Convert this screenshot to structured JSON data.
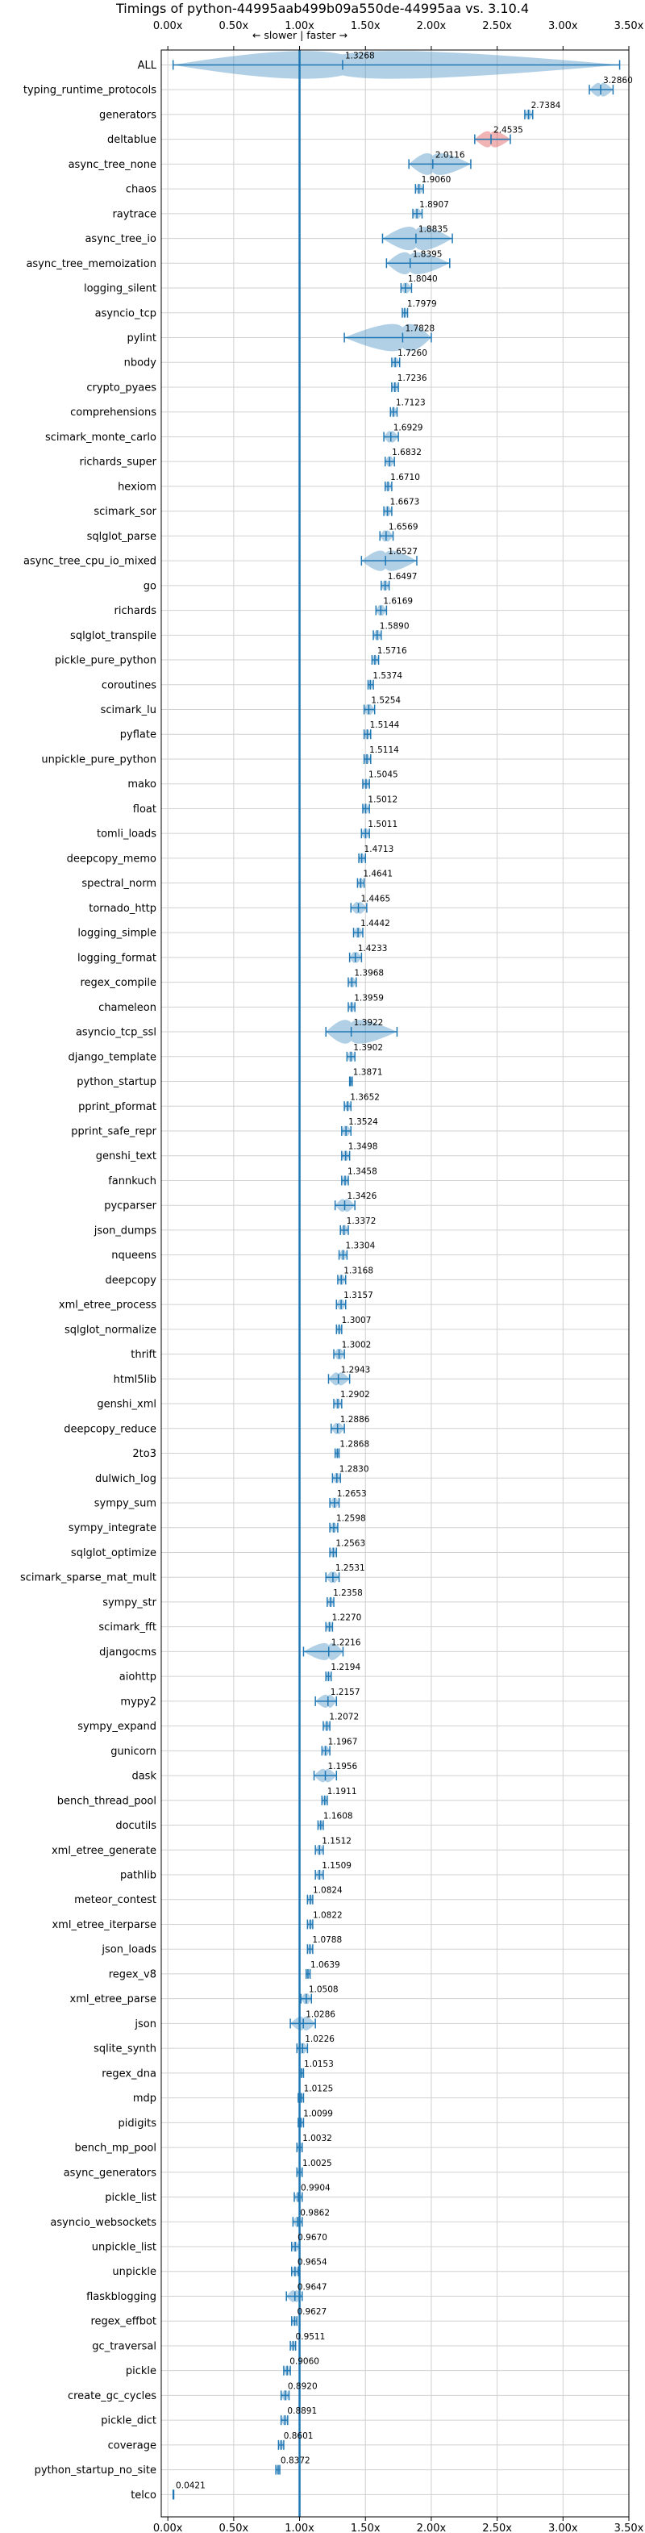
{
  "chart_data": {
    "type": "violin",
    "title": "Timings of python-44995aab499b09a550de-44995aa vs. 3.10.4",
    "direction_hint": "← slower | faster →",
    "xlim": [
      -0.05,
      3.5
    ],
    "xticks": [
      0,
      0.5,
      1.0,
      1.5,
      2.0,
      2.5,
      3.0,
      3.5
    ],
    "xtick_labels": [
      "0.00x",
      "0.50x",
      "1.00x",
      "1.50x",
      "2.00x",
      "2.50x",
      "3.00x",
      "3.50x"
    ],
    "reference_line": 1.0,
    "grid": true,
    "series_colors": {
      "faster": "#1f77b4",
      "slower": "#d62728"
    },
    "categories": [
      "ALL",
      "typing_runtime_protocols",
      "generators",
      "deltablue",
      "async_tree_none",
      "chaos",
      "raytrace",
      "async_tree_io",
      "async_tree_memoization",
      "logging_silent",
      "asyncio_tcp",
      "pylint",
      "nbody",
      "crypto_pyaes",
      "comprehensions",
      "scimark_monte_carlo",
      "richards_super",
      "hexiom",
      "scimark_sor",
      "sqlglot_parse",
      "async_tree_cpu_io_mixed",
      "go",
      "richards",
      "sqlglot_transpile",
      "pickle_pure_python",
      "coroutines",
      "scimark_lu",
      "pyflate",
      "unpickle_pure_python",
      "mako",
      "float",
      "tomli_loads",
      "deepcopy_memo",
      "spectral_norm",
      "tornado_http",
      "logging_simple",
      "logging_format",
      "regex_compile",
      "chameleon",
      "asyncio_tcp_ssl",
      "django_template",
      "python_startup",
      "pprint_pformat",
      "pprint_safe_repr",
      "genshi_text",
      "fannkuch",
      "pycparser",
      "json_dumps",
      "nqueens",
      "deepcopy",
      "xml_etree_process",
      "sqlglot_normalize",
      "thrift",
      "html5lib",
      "genshi_xml",
      "deepcopy_reduce",
      "2to3",
      "dulwich_log",
      "sympy_sum",
      "sympy_integrate",
      "sqlglot_optimize",
      "scimark_sparse_mat_mult",
      "sympy_str",
      "scimark_fft",
      "djangocms",
      "aiohttp",
      "mypy2",
      "sympy_expand",
      "gunicorn",
      "dask",
      "bench_thread_pool",
      "docutils",
      "xml_etree_generate",
      "pathlib",
      "meteor_contest",
      "xml_etree_iterparse",
      "json_loads",
      "regex_v8",
      "xml_etree_parse",
      "json",
      "sqlite_synth",
      "regex_dna",
      "mdp",
      "pidigits",
      "bench_mp_pool",
      "async_generators",
      "pickle_list",
      "asyncio_websockets",
      "unpickle_list",
      "unpickle",
      "flaskblogging",
      "regex_effbot",
      "gc_traversal",
      "pickle",
      "create_gc_cycles",
      "pickle_dict",
      "coverage",
      "python_startup_no_site",
      "telco"
    ],
    "values": [
      1.3268,
      3.286,
      2.7384,
      2.4535,
      2.0116,
      1.906,
      1.8907,
      1.8835,
      1.8395,
      1.804,
      1.7979,
      1.7828,
      1.726,
      1.7236,
      1.7123,
      1.6929,
      1.6832,
      1.671,
      1.6673,
      1.6569,
      1.6527,
      1.6497,
      1.6169,
      1.589,
      1.5716,
      1.5374,
      1.5254,
      1.5144,
      1.5114,
      1.5045,
      1.5012,
      1.5011,
      1.4713,
      1.4641,
      1.4465,
      1.4442,
      1.4233,
      1.3968,
      1.3959,
      1.3922,
      1.3902,
      1.3871,
      1.3652,
      1.3524,
      1.3498,
      1.3458,
      1.3426,
      1.3372,
      1.3304,
      1.3168,
      1.3157,
      1.3007,
      1.3002,
      1.2943,
      1.2902,
      1.2886,
      1.2868,
      1.283,
      1.2653,
      1.2598,
      1.2563,
      1.2531,
      1.2358,
      1.227,
      1.2216,
      1.2194,
      1.2157,
      1.2072,
      1.1967,
      1.1956,
      1.1911,
      1.1608,
      1.1512,
      1.1509,
      1.0824,
      1.0822,
      1.0788,
      1.0639,
      1.0508,
      1.0286,
      1.0226,
      1.0153,
      1.0125,
      1.0099,
      1.0032,
      1.0025,
      0.9904,
      0.9862,
      0.967,
      0.9654,
      0.9647,
      0.9627,
      0.9511,
      0.906,
      0.892,
      0.8891,
      0.8601,
      0.8372,
      0.0421
    ],
    "value_labels": [
      "1.3268",
      "3.2860",
      "2.7384",
      "2.4535",
      "2.0116",
      "1.9060",
      "1.8907",
      "1.8835",
      "1.8395",
      "1.8040",
      "1.7979",
      "1.7828",
      "1.7260",
      "1.7236",
      "1.7123",
      "1.6929",
      "1.6832",
      "1.6710",
      "1.6673",
      "1.6569",
      "1.6527",
      "1.6497",
      "1.6169",
      "1.5890",
      "1.5716",
      "1.5374",
      "1.5254",
      "1.5144",
      "1.5114",
      "1.5045",
      "1.5012",
      "1.5011",
      "1.4713",
      "1.4641",
      "1.4465",
      "1.4442",
      "1.4233",
      "1.3968",
      "1.3959",
      "1.3922",
      "1.3902",
      "1.3871",
      "1.3652",
      "1.3524",
      "1.3498",
      "1.3458",
      "1.3426",
      "1.3372",
      "1.3304",
      "1.3168",
      "1.3157",
      "1.3007",
      "1.3002",
      "1.2943",
      "1.2902",
      "1.2886",
      "1.2868",
      "1.2830",
      "1.2653",
      "1.2598",
      "1.2563",
      "1.2531",
      "1.2358",
      "1.2270",
      "1.2216",
      "1.2194",
      "1.2157",
      "1.2072",
      "1.1967",
      "1.1956",
      "1.1911",
      "1.1608",
      "1.1512",
      "1.1509",
      "1.0824",
      "1.0822",
      "1.0788",
      "1.0639",
      "1.0508",
      "1.0286",
      "1.0226",
      "1.0153",
      "1.0125",
      "1.0099",
      "1.0032",
      "1.0025",
      "0.9904",
      "0.9862",
      "0.9670",
      "0.9654",
      "0.9647",
      "0.9627",
      "0.9511",
      "0.9060",
      "0.8920",
      "0.8891",
      "0.8601",
      "0.8372",
      "0.0421"
    ],
    "ranges": [
      [
        0.04,
        3.43
      ],
      [
        3.2,
        3.38
      ],
      [
        2.71,
        2.77
      ],
      [
        2.33,
        2.6
      ],
      [
        1.83,
        2.3
      ],
      [
        1.88,
        1.94
      ],
      [
        1.86,
        1.93
      ],
      [
        1.63,
        2.16
      ],
      [
        1.66,
        2.14
      ],
      [
        1.77,
        1.85
      ],
      [
        1.78,
        1.82
      ],
      [
        1.34,
        2.0
      ],
      [
        1.7,
        1.76
      ],
      [
        1.7,
        1.75
      ],
      [
        1.69,
        1.74
      ],
      [
        1.64,
        1.75
      ],
      [
        1.65,
        1.72
      ],
      [
        1.65,
        1.7
      ],
      [
        1.64,
        1.7
      ],
      [
        1.61,
        1.71
      ],
      [
        1.47,
        1.89
      ],
      [
        1.62,
        1.68
      ],
      [
        1.58,
        1.66
      ],
      [
        1.56,
        1.62
      ],
      [
        1.55,
        1.6
      ],
      [
        1.52,
        1.56
      ],
      [
        1.49,
        1.57
      ],
      [
        1.49,
        1.54
      ],
      [
        1.49,
        1.54
      ],
      [
        1.48,
        1.53
      ],
      [
        1.48,
        1.53
      ],
      [
        1.47,
        1.53
      ],
      [
        1.45,
        1.5
      ],
      [
        1.44,
        1.49
      ],
      [
        1.39,
        1.51
      ],
      [
        1.41,
        1.48
      ],
      [
        1.38,
        1.47
      ],
      [
        1.37,
        1.43
      ],
      [
        1.37,
        1.42
      ],
      [
        1.2,
        1.74
      ],
      [
        1.36,
        1.42
      ],
      [
        1.38,
        1.4
      ],
      [
        1.34,
        1.39
      ],
      [
        1.32,
        1.39
      ],
      [
        1.32,
        1.38
      ],
      [
        1.32,
        1.37
      ],
      [
        1.27,
        1.42
      ],
      [
        1.31,
        1.37
      ],
      [
        1.3,
        1.36
      ],
      [
        1.29,
        1.35
      ],
      [
        1.28,
        1.35
      ],
      [
        1.28,
        1.32
      ],
      [
        1.26,
        1.34
      ],
      [
        1.22,
        1.38
      ],
      [
        1.26,
        1.32
      ],
      [
        1.24,
        1.34
      ],
      [
        1.27,
        1.3
      ],
      [
        1.25,
        1.31
      ],
      [
        1.23,
        1.3
      ],
      [
        1.23,
        1.29
      ],
      [
        1.23,
        1.28
      ],
      [
        1.2,
        1.3
      ],
      [
        1.21,
        1.26
      ],
      [
        1.2,
        1.25
      ],
      [
        1.03,
        1.33
      ],
      [
        1.2,
        1.24
      ],
      [
        1.12,
        1.28
      ],
      [
        1.18,
        1.23
      ],
      [
        1.17,
        1.23
      ],
      [
        1.11,
        1.28
      ],
      [
        1.17,
        1.21
      ],
      [
        1.14,
        1.18
      ],
      [
        1.12,
        1.18
      ],
      [
        1.12,
        1.18
      ],
      [
        1.06,
        1.1
      ],
      [
        1.06,
        1.1
      ],
      [
        1.06,
        1.1
      ],
      [
        1.05,
        1.08
      ],
      [
        1.01,
        1.09
      ],
      [
        0.93,
        1.12
      ],
      [
        0.98,
        1.06
      ],
      [
        1.0,
        1.03
      ],
      [
        0.99,
        1.03
      ],
      [
        0.99,
        1.03
      ],
      [
        0.98,
        1.02
      ],
      [
        0.98,
        1.02
      ],
      [
        0.96,
        1.02
      ],
      [
        0.95,
        1.02
      ],
      [
        0.94,
        1.0
      ],
      [
        0.94,
        0.99
      ],
      [
        0.9,
        1.02
      ],
      [
        0.94,
        0.98
      ],
      [
        0.93,
        0.97
      ],
      [
        0.88,
        0.93
      ],
      [
        0.86,
        0.92
      ],
      [
        0.86,
        0.91
      ],
      [
        0.84,
        0.88
      ],
      [
        0.82,
        0.85
      ],
      [
        0.04,
        0.045
      ]
    ]
  }
}
